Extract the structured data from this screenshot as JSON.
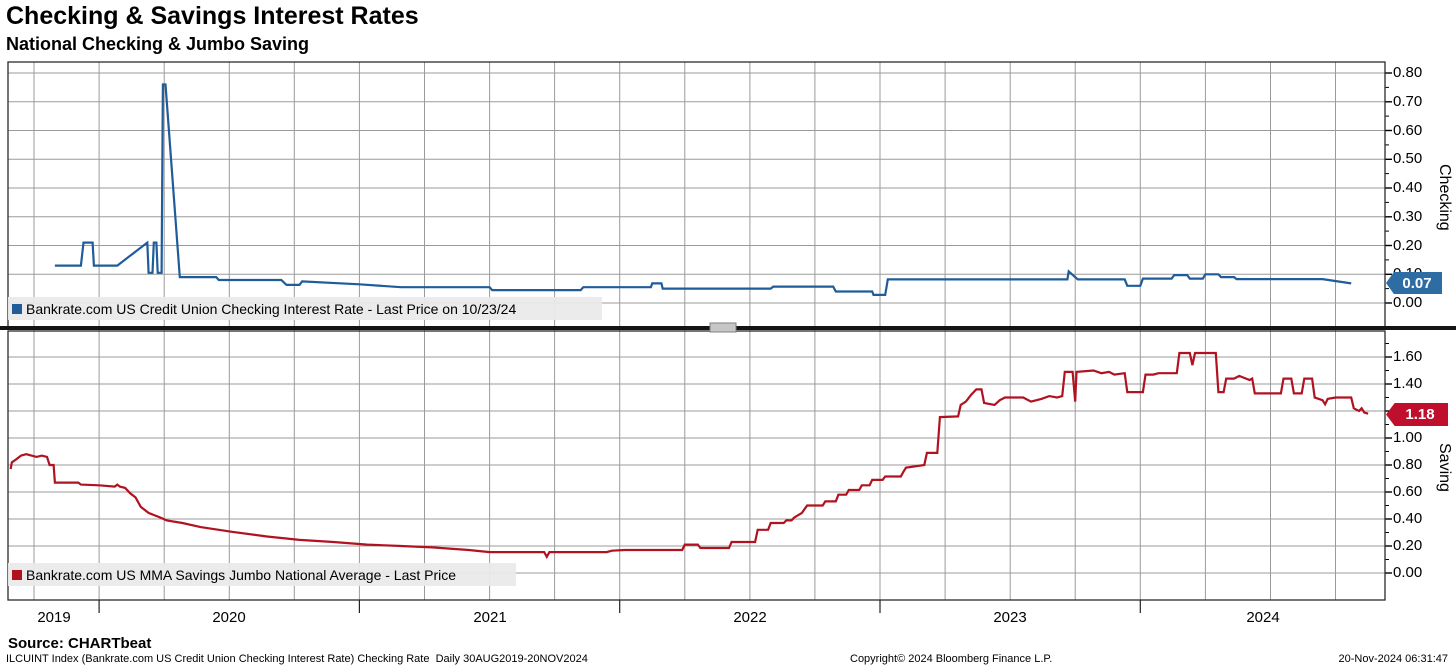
{
  "header": {
    "title": "Checking & Savings Interest Rates",
    "subtitle": "National Checking & Jumbo Saving"
  },
  "chart_data": [
    {
      "type": "line",
      "panel": "top",
      "ylabel": "Checking",
      "legend": "Bankrate.com US Credit Union Checking Interest Rate - Last Price on 10/23/24",
      "line_color": "#1f5c99",
      "badge_color": "#2e6da4",
      "ylim": [
        -0.085,
        0.838
      ],
      "yticks": [
        "0.80",
        "0.70",
        "0.60",
        "0.50",
        "0.40",
        "0.30",
        "0.20",
        "0.10",
        "0.00"
      ],
      "ytick_values": [
        0.8,
        0.7,
        0.6,
        0.5,
        0.4,
        0.3,
        0.2,
        0.1,
        0.0
      ],
      "grid": true,
      "legend_position": "bottom-left-inside",
      "series": [
        {
          "name": "Bankrate.com US Credit Union Checking Interest Rate",
          "last_price": 0.07,
          "last_price_label": "0.07",
          "points": [
            [
              2019.83,
              0.13
            ],
            [
              2019.93,
              0.13
            ],
            [
              2019.94,
              0.21
            ],
            [
              2019.975,
              0.21
            ],
            [
              2019.98,
              0.13
            ],
            [
              2020.07,
              0.13
            ],
            [
              2020.185,
              0.21
            ],
            [
              2020.19,
              0.105
            ],
            [
              2020.205,
              0.105
            ],
            [
              2020.21,
              0.21
            ],
            [
              2020.22,
              0.21
            ],
            [
              2020.225,
              0.105
            ],
            [
              2020.24,
              0.105
            ],
            [
              2020.245,
              0.76
            ],
            [
              2020.255,
              0.76
            ],
            [
              2020.31,
              0.09
            ],
            [
              2020.45,
              0.09
            ],
            [
              2020.46,
              0.08
            ],
            [
              2020.7,
              0.08
            ],
            [
              2020.72,
              0.063
            ],
            [
              2020.77,
              0.063
            ],
            [
              2020.78,
              0.075
            ],
            [
              2021.0,
              0.065
            ],
            [
              2021.16,
              0.055
            ],
            [
              2021.5,
              0.055
            ],
            [
              2021.51,
              0.045
            ],
            [
              2021.85,
              0.045
            ],
            [
              2021.86,
              0.055
            ],
            [
              2022.12,
              0.055
            ],
            [
              2022.125,
              0.068
            ],
            [
              2022.16,
              0.068
            ],
            [
              2022.165,
              0.05
            ],
            [
              2022.58,
              0.05
            ],
            [
              2022.59,
              0.057
            ],
            [
              2022.82,
              0.057
            ],
            [
              2022.83,
              0.04
            ],
            [
              2022.97,
              0.04
            ],
            [
              2022.975,
              0.028
            ],
            [
              2023.02,
              0.028
            ],
            [
              2023.03,
              0.082
            ],
            [
              2023.72,
              0.082
            ],
            [
              2023.725,
              0.11
            ],
            [
              2023.76,
              0.082
            ],
            [
              2023.94,
              0.082
            ],
            [
              2023.95,
              0.06
            ],
            [
              2024.0,
              0.06
            ],
            [
              2024.01,
              0.085
            ],
            [
              2024.12,
              0.085
            ],
            [
              2024.13,
              0.097
            ],
            [
              2024.18,
              0.097
            ],
            [
              2024.19,
              0.085
            ],
            [
              2024.24,
              0.085
            ],
            [
              2024.25,
              0.1
            ],
            [
              2024.3,
              0.1
            ],
            [
              2024.31,
              0.09
            ],
            [
              2024.36,
              0.09
            ],
            [
              2024.37,
              0.083
            ],
            [
              2024.7,
              0.083
            ],
            [
              2024.81,
              0.068
            ]
          ]
        }
      ]
    },
    {
      "type": "line",
      "panel": "bottom",
      "ylabel": "Saving",
      "legend": "Bankrate.com US MMA Savings Jumbo National Average - Last Price",
      "line_color": "#b01220",
      "badge_color": "#c00f2d",
      "ylim": [
        -0.2,
        1.79
      ],
      "yticks": [
        "1.60",
        "1.40",
        "1.20",
        "1.00",
        "0.80",
        "0.60",
        "0.40",
        "0.20",
        "0.00"
      ],
      "ytick_values": [
        1.6,
        1.4,
        1.2,
        1.0,
        0.8,
        0.6,
        0.4,
        0.2,
        0.0
      ],
      "grid": true,
      "legend_position": "bottom-left-inside",
      "series": [
        {
          "name": "Bankrate.com US MMA Savings Jumbo National Average",
          "last_price": 1.18,
          "last_price_label": "1.18",
          "points": [
            [
              2019.66,
              0.77
            ],
            [
              2019.665,
              0.82
            ],
            [
              2019.68,
              0.84
            ],
            [
              2019.7,
              0.87
            ],
            [
              2019.72,
              0.88
            ],
            [
              2019.74,
              0.87
            ],
            [
              2019.76,
              0.86
            ],
            [
              2019.78,
              0.87
            ],
            [
              2019.8,
              0.86
            ],
            [
              2019.81,
              0.8
            ],
            [
              2019.825,
              0.8
            ],
            [
              2019.83,
              0.67
            ],
            [
              2019.92,
              0.67
            ],
            [
              2019.93,
              0.655
            ],
            [
              2020.0,
              0.65
            ],
            [
              2020.06,
              0.64
            ],
            [
              2020.07,
              0.655
            ],
            [
              2020.08,
              0.64
            ],
            [
              2020.1,
              0.63
            ],
            [
              2020.12,
              0.59
            ],
            [
              2020.14,
              0.56
            ],
            [
              2020.16,
              0.49
            ],
            [
              2020.19,
              0.445
            ],
            [
              2020.21,
              0.43
            ],
            [
              2020.23,
              0.415
            ],
            [
              2020.26,
              0.39
            ],
            [
              2020.32,
              0.37
            ],
            [
              2020.39,
              0.34
            ],
            [
              2020.51,
              0.305
            ],
            [
              2020.645,
              0.27
            ],
            [
              2020.77,
              0.245
            ],
            [
              2020.9,
              0.23
            ],
            [
              2021.03,
              0.21
            ],
            [
              2021.16,
              0.2
            ],
            [
              2021.28,
              0.19
            ],
            [
              2021.42,
              0.17
            ],
            [
              2021.5,
              0.155
            ],
            [
              2021.71,
              0.155
            ],
            [
              2021.72,
              0.12
            ],
            [
              2021.73,
              0.155
            ],
            [
              2021.95,
              0.155
            ],
            [
              2021.97,
              0.165
            ],
            [
              2022.02,
              0.17
            ],
            [
              2022.24,
              0.17
            ],
            [
              2022.25,
              0.21
            ],
            [
              2022.3,
              0.21
            ],
            [
              2022.31,
              0.185
            ],
            [
              2022.42,
              0.185
            ],
            [
              2022.43,
              0.23
            ],
            [
              2022.52,
              0.23
            ],
            [
              2022.53,
              0.32
            ],
            [
              2022.57,
              0.32
            ],
            [
              2022.58,
              0.37
            ],
            [
              2022.63,
              0.37
            ],
            [
              2022.64,
              0.39
            ],
            [
              2022.66,
              0.39
            ],
            [
              2022.67,
              0.41
            ],
            [
              2022.7,
              0.445
            ],
            [
              2022.72,
              0.5
            ],
            [
              2022.78,
              0.5
            ],
            [
              2022.79,
              0.53
            ],
            [
              2022.83,
              0.53
            ],
            [
              2022.84,
              0.58
            ],
            [
              2022.87,
              0.58
            ],
            [
              2022.88,
              0.615
            ],
            [
              2022.92,
              0.615
            ],
            [
              2022.93,
              0.65
            ],
            [
              2022.96,
              0.65
            ],
            [
              2022.97,
              0.69
            ],
            [
              2023.01,
              0.69
            ],
            [
              2023.02,
              0.715
            ],
            [
              2023.08,
              0.715
            ],
            [
              2023.09,
              0.75
            ],
            [
              2023.1,
              0.78
            ],
            [
              2023.17,
              0.8
            ],
            [
              2023.18,
              0.89
            ],
            [
              2023.22,
              0.89
            ],
            [
              2023.23,
              1.155
            ],
            [
              2023.3,
              1.16
            ],
            [
              2023.31,
              1.245
            ],
            [
              2023.33,
              1.27
            ],
            [
              2023.35,
              1.32
            ],
            [
              2023.37,
              1.36
            ],
            [
              2023.39,
              1.36
            ],
            [
              2023.4,
              1.26
            ],
            [
              2023.44,
              1.245
            ],
            [
              2023.46,
              1.28
            ],
            [
              2023.48,
              1.3
            ],
            [
              2023.55,
              1.3
            ],
            [
              2023.58,
              1.27
            ],
            [
              2023.62,
              1.29
            ],
            [
              2023.65,
              1.31
            ],
            [
              2023.68,
              1.3
            ],
            [
              2023.7,
              1.31
            ],
            [
              2023.71,
              1.49
            ],
            [
              2023.74,
              1.49
            ],
            [
              2023.75,
              1.27
            ],
            [
              2023.755,
              1.49
            ],
            [
              2023.82,
              1.5
            ],
            [
              2023.85,
              1.48
            ],
            [
              2023.88,
              1.49
            ],
            [
              2023.9,
              1.47
            ],
            [
              2023.94,
              1.48
            ],
            [
              2023.95,
              1.34
            ],
            [
              2024.01,
              1.34
            ],
            [
              2024.02,
              1.47
            ],
            [
              2024.05,
              1.47
            ],
            [
              2024.07,
              1.48
            ],
            [
              2024.14,
              1.48
            ],
            [
              2024.15,
              1.63
            ],
            [
              2024.19,
              1.63
            ],
            [
              2024.2,
              1.54
            ],
            [
              2024.21,
              1.63
            ],
            [
              2024.29,
              1.63
            ],
            [
              2024.3,
              1.34
            ],
            [
              2024.32,
              1.34
            ],
            [
              2024.33,
              1.44
            ],
            [
              2024.36,
              1.44
            ],
            [
              2024.38,
              1.46
            ],
            [
              2024.42,
              1.43
            ],
            [
              2024.43,
              1.44
            ],
            [
              2024.44,
              1.33
            ],
            [
              2024.54,
              1.33
            ],
            [
              2024.55,
              1.44
            ],
            [
              2024.58,
              1.44
            ],
            [
              2024.59,
              1.33
            ],
            [
              2024.62,
              1.33
            ],
            [
              2024.63,
              1.44
            ],
            [
              2024.66,
              1.44
            ],
            [
              2024.67,
              1.3
            ],
            [
              2024.7,
              1.28
            ],
            [
              2024.71,
              1.25
            ],
            [
              2024.72,
              1.29
            ],
            [
              2024.75,
              1.3
            ],
            [
              2024.81,
              1.3
            ],
            [
              2024.82,
              1.22
            ],
            [
              2024.84,
              1.2
            ],
            [
              2024.85,
              1.22
            ],
            [
              2024.86,
              1.19
            ],
            [
              2024.875,
              1.18
            ]
          ]
        }
      ]
    }
  ],
  "x_axis": {
    "range": [
      2019.65,
      2024.94
    ],
    "year_tick_values": [
      2020,
      2021,
      2022,
      2023,
      2024
    ],
    "year_labels": [
      "2019",
      "2020",
      "2021",
      "2022",
      "2023",
      "2024"
    ],
    "gridline_interval": "quarterly"
  },
  "footer": {
    "source": "Source: CHARTbeat",
    "description": "ILCUINT Index (Bankrate.com US Credit Union Checking Interest Rate) Checking Rate  Daily 30AUG2019-20NOV2024",
    "copyright": "Copyright© 2024 Bloomberg Finance L.P.",
    "timestamp": "20-Nov-2024 06:31:47"
  },
  "colors": {
    "checking_line": "#1f5c99",
    "saving_line": "#b01220",
    "grid": "#9b9b9b",
    "panel_border": "#2b2b2b",
    "separator": "#141414",
    "legend_bg": "#eaeaea"
  }
}
